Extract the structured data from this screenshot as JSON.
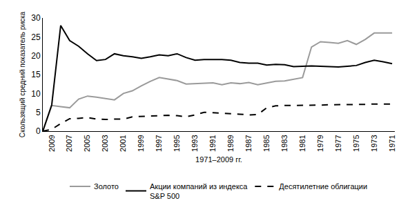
{
  "chart_data": {
    "type": "line",
    "x_label": "1971–2009 гг.",
    "y_label": "Скользящий средний показатель риска",
    "categories": [
      null,
      "2009",
      null,
      "2007",
      null,
      "2005",
      null,
      "2003",
      null,
      "2001",
      null,
      "1999",
      null,
      "1997",
      null,
      "1995",
      null,
      "1993",
      null,
      "1991",
      null,
      "1989",
      null,
      "1987",
      null,
      "1985",
      null,
      "1983",
      null,
      "1981",
      null,
      "1979",
      null,
      "1977",
      null,
      "1975",
      null,
      "1973",
      null,
      "1971"
    ],
    "series": [
      {
        "name": "Золото",
        "color": "#9a9a9a",
        "line_style": "solid",
        "values": [
          0,
          6.8,
          6.5,
          6.2,
          8.5,
          9.3,
          9.0,
          8.7,
          8.3,
          10.0,
          10.7,
          12.0,
          13.2,
          14.2,
          13.8,
          13.4,
          12.5,
          12.6,
          12.7,
          12.8,
          12.3,
          12.8,
          12.6,
          12.9,
          12.3,
          12.8,
          13.2,
          13.3,
          13.8,
          14.2,
          22.3,
          23.7,
          23.5,
          23.3,
          24.0,
          23.0,
          24.3,
          26.0,
          26.0,
          26.0
        ]
      },
      {
        "name": "Акции компаний из индекса\nS&P 500",
        "color": "#000000",
        "line_style": "solid",
        "values": [
          0,
          7.0,
          28.0,
          24.0,
          22.5,
          20.5,
          18.7,
          19.0,
          20.5,
          20.0,
          19.7,
          19.3,
          19.7,
          20.2,
          20.0,
          20.5,
          19.5,
          18.8,
          19.0,
          19.0,
          19.0,
          18.8,
          18.2,
          18.0,
          18.0,
          17.5,
          17.7,
          17.6,
          17.1,
          17.2,
          17.3,
          17.2,
          17.1,
          17.0,
          17.2,
          17.4,
          18.2,
          18.8,
          18.4,
          17.9
        ]
      },
      {
        "name": "Десятилетние облигации",
        "color": "#000000",
        "line_style": "dash",
        "values": [
          0,
          0.5,
          2.0,
          3.3,
          3.4,
          3.6,
          3.2,
          3.1,
          3.2,
          3.2,
          3.8,
          3.9,
          4.0,
          4.1,
          4.2,
          4.1,
          3.8,
          4.3,
          5.0,
          4.9,
          4.8,
          4.6,
          4.5,
          4.3,
          4.4,
          6.2,
          6.7,
          6.8,
          6.8,
          6.8,
          6.9,
          6.9,
          7.0,
          7.0,
          7.0,
          7.1,
          7.1,
          7.2,
          7.2,
          7.2
        ]
      }
    ],
    "ylim": [
      0,
      30
    ],
    "yticks": [
      0,
      5,
      10,
      15,
      20,
      25,
      30
    ],
    "grid": false,
    "legend": "bottom"
  }
}
